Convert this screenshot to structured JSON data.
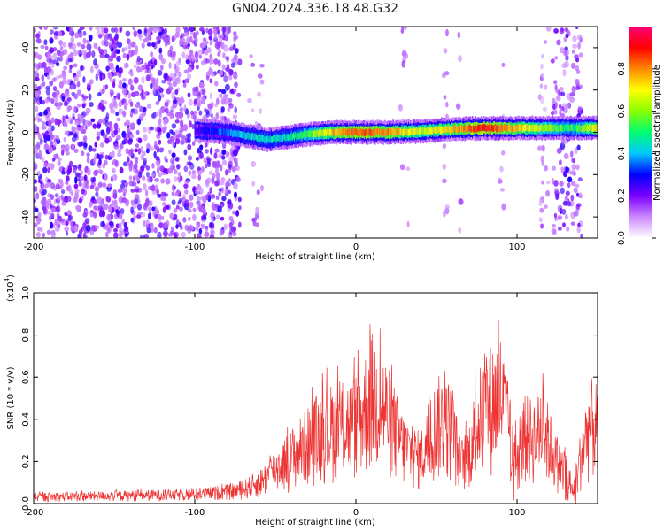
{
  "title": "GN04.2024.336.18.48.G32",
  "chart_data": [
    {
      "type": "heatmap",
      "xlabel": "Height of straight line (km)",
      "ylabel": "Frequency (Hz)",
      "xlim": [
        -200,
        150
      ],
      "ylim": [
        -50,
        50
      ],
      "xticks": [
        -200,
        -100,
        0,
        100
      ],
      "yticks": [
        -40,
        -20,
        0,
        20,
        40
      ],
      "colorbar": {
        "label": "Normalized spectral amplitude",
        "range": [
          0,
          1
        ],
        "ticks": [
          "0.0",
          "0.2",
          "0.4",
          "0.6",
          "0.8"
        ],
        "colors": [
          "#ffffff",
          "#cc88ff",
          "#7a00ff",
          "#0000ff",
          "#00c8ff",
          "#00ff70",
          "#88ff00",
          "#ffff00",
          "#ff8800",
          "#ff0000",
          "#ff0077"
        ]
      },
      "ridge": [
        {
          "x": -100,
          "y": 1.0,
          "a": 0.25
        },
        {
          "x": -80,
          "y": 0.0,
          "a": 0.35
        },
        {
          "x": -65,
          "y": -2.0,
          "a": 0.45
        },
        {
          "x": -55,
          "y": -3.5,
          "a": 0.45
        },
        {
          "x": -45,
          "y": -2.5,
          "a": 0.45
        },
        {
          "x": -30,
          "y": -1.0,
          "a": 0.55
        },
        {
          "x": -15,
          "y": 0.0,
          "a": 0.75
        },
        {
          "x": 0,
          "y": 0.0,
          "a": 0.85
        },
        {
          "x": 20,
          "y": 0.0,
          "a": 0.8
        },
        {
          "x": 40,
          "y": 0.5,
          "a": 0.65
        },
        {
          "x": 60,
          "y": 1.5,
          "a": 0.75
        },
        {
          "x": 80,
          "y": 2.0,
          "a": 0.9
        },
        {
          "x": 100,
          "y": 2.0,
          "a": 0.75
        },
        {
          "x": 120,
          "y": 2.0,
          "a": 0.6
        },
        {
          "x": 135,
          "y": 2.0,
          "a": 0.5
        },
        {
          "x": 150,
          "y": 2.0,
          "a": 0.75
        }
      ],
      "noise_bands": [
        {
          "x_from": -200,
          "x_to": -72,
          "density": 0.55
        },
        {
          "x_from": -66,
          "x_to": -58,
          "density": 0.12
        },
        {
          "x_from": 27,
          "x_to": 33,
          "density": 0.1
        },
        {
          "x_from": 54,
          "x_to": 57,
          "density": 0.18
        },
        {
          "x_from": 63,
          "x_to": 66,
          "density": 0.08
        },
        {
          "x_from": 89,
          "x_to": 92,
          "density": 0.14
        },
        {
          "x_from": 114,
          "x_to": 120,
          "density": 0.18
        },
        {
          "x_from": 122,
          "x_to": 140,
          "density": 0.35
        }
      ]
    },
    {
      "type": "line",
      "xlabel": "Height of straight line (km)",
      "ylabel": "SNR (10 * v/v)",
      "yscale_label": "(x10",
      "yscale_exp": "4",
      "yscale_suffix": ")",
      "xlim": [
        -200,
        150
      ],
      "ylim": [
        0,
        1
      ],
      "xticks": [
        -200,
        -100,
        0,
        100
      ],
      "yticks": [
        0.0,
        0.2,
        0.4,
        0.6,
        0.8,
        1.0
      ],
      "series": [
        {
          "color": "#ee3333",
          "envelope_x": [
            -200,
            -150,
            -100,
            -80,
            -70,
            -60,
            -50,
            -40,
            -30,
            -20,
            -10,
            0,
            5,
            10,
            15,
            20,
            30,
            40,
            50,
            55,
            60,
            65,
            70,
            75,
            80,
            85,
            90,
            95,
            100,
            105,
            110,
            115,
            120,
            125,
            130,
            135,
            140,
            145,
            150
          ],
          "envelope_y": [
            0.05,
            0.06,
            0.07,
            0.09,
            0.11,
            0.16,
            0.26,
            0.36,
            0.46,
            0.56,
            0.58,
            0.62,
            0.7,
            0.82,
            0.78,
            0.66,
            0.42,
            0.34,
            0.6,
            0.63,
            0.55,
            0.3,
            0.38,
            0.6,
            0.72,
            0.78,
            0.82,
            0.55,
            0.32,
            0.52,
            0.5,
            0.6,
            0.46,
            0.3,
            0.26,
            0.1,
            0.38,
            0.6,
            0.58
          ]
        }
      ]
    }
  ]
}
